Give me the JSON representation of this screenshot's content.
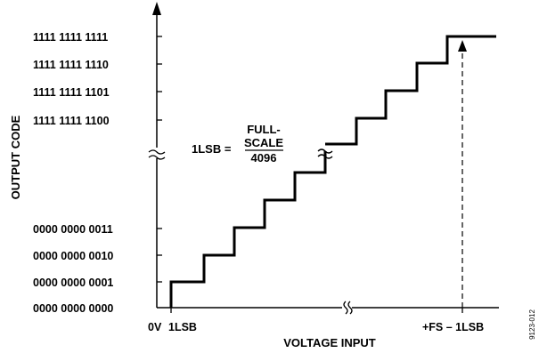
{
  "y_axis_title": "OUTPUT CODE",
  "x_axis_title": "VOLTAGE INPUT",
  "y_codes_high": [
    "1111 1111 1111",
    "1111 1111 1110",
    "1111 1111 1101",
    "1111 1111 1100"
  ],
  "y_codes_low": [
    "0000 0000 0011",
    "0000 0000 0010",
    "0000 0000 0001",
    "0000 0000 0000"
  ],
  "x_labels": {
    "zero": "0V",
    "lsb": "1LSB",
    "fs": "+FS – 1LSB"
  },
  "formula": {
    "lhs": "1LSB =",
    "num_line1": "FULL-",
    "num_line2": "SCALE",
    "den": "4096"
  },
  "figure_id": "9123-012"
}
